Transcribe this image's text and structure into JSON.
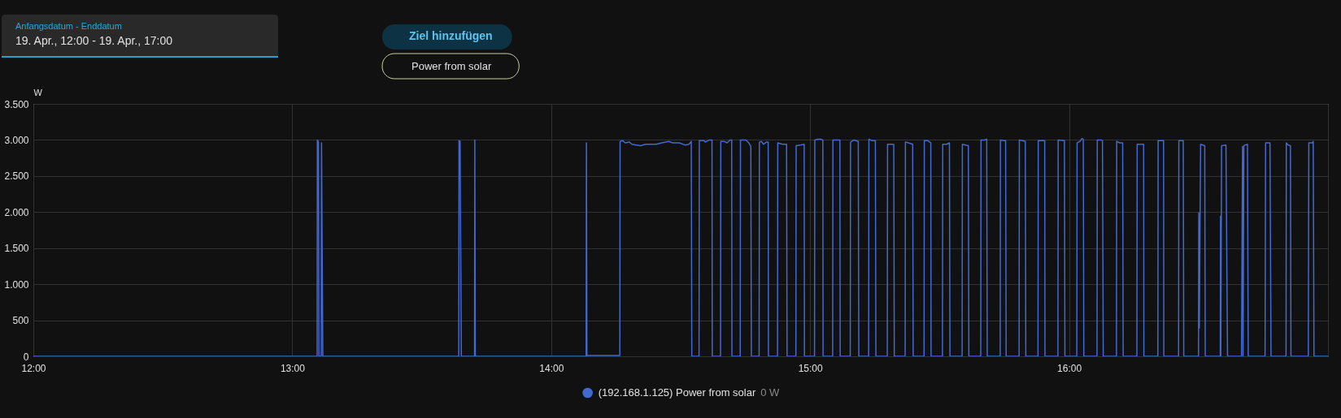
{
  "chart_data": {
    "type": "line",
    "annotations": [
      "Anfangsdatum - Enddatum",
      "19. Apr., 12:00 - 19. Apr., 17:00",
      "Ziel hinzufügen",
      "Power from solar",
      "0 W"
    ],
    "ylabel": "W",
    "x": [
      12.0,
      13.096,
      13.097,
      13.101,
      13.103,
      13.112,
      13.113,
      13.118,
      13.643,
      13.644,
      13.648,
      13.653,
      13.704,
      13.705,
      13.707,
      14.135,
      14.136,
      14.138,
      14.265,
      14.266,
      14.276,
      14.286,
      14.302,
      14.312,
      14.344,
      14.365,
      14.385,
      14.406,
      14.427,
      14.454,
      14.469,
      14.495,
      14.516,
      14.532,
      14.541,
      14.543,
      14.571,
      14.572,
      14.59,
      14.595,
      14.611,
      14.621,
      14.622,
      14.654,
      14.655,
      14.668,
      14.679,
      14.691,
      14.697,
      14.698,
      14.73,
      14.731,
      14.752,
      14.763,
      14.771,
      14.773,
      14.803,
      14.804,
      14.812,
      14.82,
      14.831,
      14.838,
      14.839,
      14.874,
      14.875,
      14.893,
      14.909,
      14.911,
      14.945,
      14.946,
      14.962,
      14.977,
      14.978,
      15.017,
      15.018,
      15.03,
      15.04,
      15.049,
      15.05,
      15.087,
      15.088,
      15.115,
      15.116,
      15.155,
      15.156,
      15.169,
      15.186,
      15.188,
      15.226,
      15.227,
      15.239,
      15.252,
      15.254,
      15.298,
      15.299,
      15.323,
      15.325,
      15.367,
      15.368,
      15.38,
      15.396,
      15.398,
      15.44,
      15.441,
      15.454,
      15.466,
      15.467,
      15.511,
      15.512,
      15.527,
      15.538,
      15.54,
      15.587,
      15.588,
      15.611,
      15.613,
      15.659,
      15.66,
      15.674,
      15.682,
      15.684,
      15.734,
      15.735,
      15.747,
      15.755,
      15.757,
      15.807,
      15.808,
      15.82,
      15.831,
      15.833,
      15.88,
      15.881,
      15.906,
      15.907,
      15.957,
      15.958,
      15.982,
      15.984,
      16.03,
      16.031,
      16.042,
      16.05,
      16.055,
      16.057,
      16.108,
      16.109,
      16.124,
      16.129,
      16.132,
      16.183,
      16.184,
      16.195,
      16.207,
      16.209,
      16.262,
      16.263,
      16.288,
      16.289,
      16.343,
      16.344,
      16.365,
      16.366,
      16.423,
      16.424,
      16.441,
      16.443,
      16.5,
      16.501,
      16.503,
      16.508,
      16.524,
      16.526,
      16.584,
      16.585,
      16.586,
      16.589,
      16.606,
      16.612,
      16.666,
      16.67,
      16.672,
      16.675,
      16.681,
      16.689,
      16.692,
      16.757,
      16.759,
      16.776,
      16.78,
      16.838,
      16.839,
      16.846,
      16.855,
      16.857,
      16.924,
      16.926,
      16.939,
      16.943,
      16.946,
      17.0
    ],
    "series": [
      {
        "name": "(192.168.1.125) Power from solar",
        "color": "#4269d0",
        "values": [
          0,
          0,
          3000,
          2970,
          0,
          0,
          2960,
          0,
          0,
          2990,
          2980,
          0,
          0,
          3000,
          0,
          0,
          2960,
          10,
          10,
          2980,
          2990,
          2960,
          2970,
          2940,
          2920,
          2940,
          2940,
          2940,
          2960,
          2980,
          2960,
          2960,
          2930,
          2940,
          2980,
          0,
          0,
          2990,
          2990,
          2970,
          3000,
          3000,
          0,
          0,
          2980,
          2980,
          2960,
          3000,
          3000,
          0,
          0,
          3000,
          3000,
          2960,
          2910,
          0,
          0,
          2970,
          2980,
          2940,
          2970,
          2970,
          0,
          0,
          2960,
          2940,
          2940,
          0,
          0,
          2920,
          2930,
          2940,
          0,
          0,
          3000,
          3010,
          3010,
          3000,
          0,
          0,
          3000,
          3000,
          0,
          0,
          2970,
          3000,
          2980,
          0,
          0,
          3010,
          2990,
          2990,
          0,
          0,
          2940,
          2940,
          0,
          0,
          2970,
          2960,
          2940,
          0,
          0,
          2990,
          2990,
          2960,
          0,
          0,
          2940,
          2940,
          2960,
          0,
          0,
          2940,
          2920,
          0,
          0,
          3000,
          3000,
          3010,
          0,
          0,
          3000,
          2990,
          2990,
          0,
          0,
          3000,
          2990,
          2980,
          0,
          0,
          2990,
          2990,
          0,
          0,
          3000,
          2990,
          0,
          0,
          2960,
          2980,
          3020,
          3010,
          0,
          0,
          3000,
          3000,
          2990,
          0,
          0,
          2980,
          2960,
          2960,
          0,
          0,
          2940,
          2940,
          0,
          0,
          2990,
          2990,
          0,
          0,
          2990,
          2990,
          0,
          0,
          1990,
          390,
          2940,
          2920,
          0,
          0,
          1940,
          0,
          2920,
          2930,
          0,
          0,
          2910,
          0,
          2920,
          2930,
          2940,
          0,
          0,
          2960,
          2960,
          0,
          0,
          2960,
          2930,
          2920,
          0,
          0,
          2960,
          2960,
          2980,
          0,
          0
        ]
      }
    ],
    "xlim": [
      12,
      17
    ],
    "xticks": [
      {
        "value": 12,
        "label": "12:00"
      },
      {
        "value": 13,
        "label": "13:00"
      },
      {
        "value": 14,
        "label": "14:00"
      },
      {
        "value": 15,
        "label": "15:00"
      },
      {
        "value": 16,
        "label": "16:00"
      },
      {
        "value": 17,
        "label": null
      }
    ],
    "ylim": [
      0,
      3500
    ],
    "yticks": [
      0,
      500,
      {
        "value": 1000,
        "label": "1.000"
      },
      {
        "value": 1500,
        "label": "1.500"
      },
      {
        "value": 2000,
        "label": "2.000"
      },
      {
        "value": 2500,
        "label": "2.500"
      },
      {
        "value": 3000,
        "label": "3.000"
      },
      {
        "value": 3500,
        "label": "3.500"
      }
    ],
    "grid": true,
    "legend": "bottom",
    "line_style": "solid"
  }
}
